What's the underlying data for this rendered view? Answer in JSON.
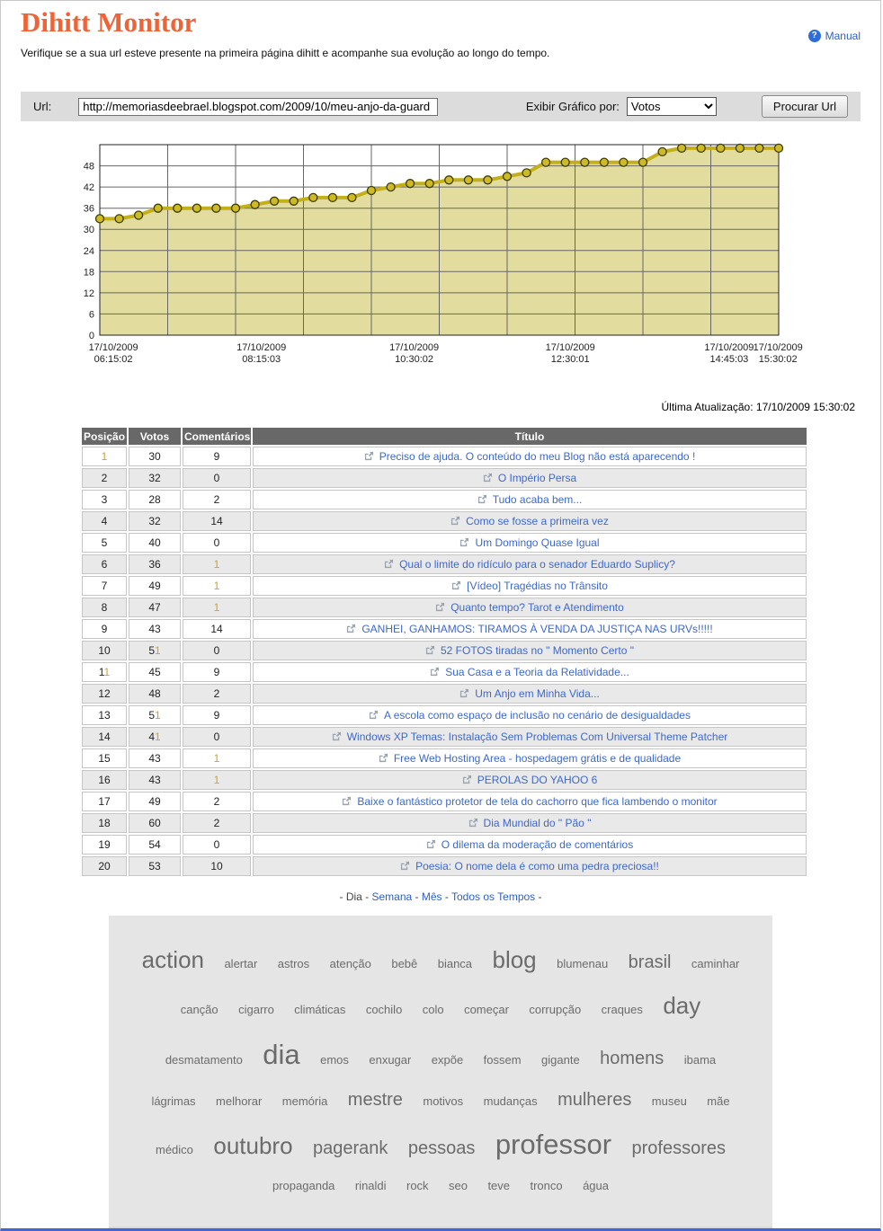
{
  "header": {
    "title": "Dihitt Monitor",
    "subtitle": "Verifique se a sua url esteve presente na primeira página dihitt e acompanhe sua evolução ao longo do tempo.",
    "manual_link": "Manual",
    "help_icon": "question-mark-circle",
    "title_color": "#EF6437"
  },
  "search_bar": {
    "url_label": "Url:",
    "url_value": "http://memoriasdeebrael.blogspot.com/2009/10/meu-anjo-da-guard",
    "graph_by_label": "Exibir Gráfico por:",
    "graph_by_value": "Votos",
    "search_button": "Procurar Url"
  },
  "chart_data": {
    "type": "area",
    "title": "",
    "xlabel": "",
    "ylabel": "",
    "values": [
      33,
      33,
      34,
      36,
      36,
      36,
      36,
      36,
      37,
      38,
      38,
      39,
      39,
      39,
      41,
      42,
      43,
      43,
      44,
      44,
      44,
      45,
      46,
      49,
      49,
      49,
      49,
      49,
      49,
      52,
      53,
      53,
      53,
      53,
      53,
      53
    ],
    "y_ticks": [
      0,
      6,
      12,
      18,
      24,
      30,
      36,
      42,
      48
    ],
    "ylim": [
      0,
      54
    ],
    "grid": true,
    "legend": false,
    "x_tick_labels": [
      {
        "date": "17/10/2009",
        "time": "06:15:02",
        "pos": 0.02
      },
      {
        "date": "17/10/2009",
        "time": "08:15:03",
        "pos": 0.238
      },
      {
        "date": "17/10/2009",
        "time": "10:30:02",
        "pos": 0.463
      },
      {
        "date": "17/10/2009",
        "time": "12:30:01",
        "pos": 0.693
      },
      {
        "date": "17/10/2009",
        "time": "14:45:03",
        "pos": 0.927
      },
      {
        "date": "17/10/2009",
        "time": "15:30:02",
        "pos": 0.999
      }
    ],
    "colors": {
      "area_fill": "#E2DD9E",
      "line": "#C3AF17",
      "marker_fill": "#CDBA26",
      "marker_stroke": "#3C3C00",
      "grid": "#666666",
      "border": "#222222"
    }
  },
  "last_update": "Última Atualização: 17/10/2009 15:30:02",
  "table": {
    "columns": [
      "Posição",
      "Votos",
      "Comentários",
      "Título"
    ],
    "highlight_color": "#C9A03C",
    "rows": [
      {
        "pos": "",
        "pos_hot": "1",
        "votes": "30",
        "votes_hot": "",
        "comments": "9",
        "comments_hot": "",
        "title": "Preciso de ajuda. O conteúdo do meu Blog não está aparecendo !"
      },
      {
        "pos": "2",
        "pos_hot": "",
        "votes": "32",
        "votes_hot": "",
        "comments": "0",
        "comments_hot": "",
        "title": "O Império Persa"
      },
      {
        "pos": "3",
        "pos_hot": "",
        "votes": "28",
        "votes_hot": "",
        "comments": "2",
        "comments_hot": "",
        "title": "Tudo acaba bem..."
      },
      {
        "pos": "4",
        "pos_hot": "",
        "votes": "32",
        "votes_hot": "",
        "comments": "14",
        "comments_hot": "",
        "title": "Como se fosse a primeira vez"
      },
      {
        "pos": "5",
        "pos_hot": "",
        "votes": "40",
        "votes_hot": "",
        "comments": "0",
        "comments_hot": "",
        "title": "Um Domingo Quase Igual"
      },
      {
        "pos": "6",
        "pos_hot": "",
        "votes": "36",
        "votes_hot": "",
        "comments": "",
        "comments_hot": "1",
        "title": "Qual o limite do ridículo para o senador Eduardo Suplicy?"
      },
      {
        "pos": "7",
        "pos_hot": "",
        "votes": "49",
        "votes_hot": "",
        "comments": "",
        "comments_hot": "1",
        "title": "[Vídeo] Tragédias no Trânsito"
      },
      {
        "pos": "8",
        "pos_hot": "",
        "votes": "47",
        "votes_hot": "",
        "comments": "",
        "comments_hot": "1",
        "title": "Quanto tempo? Tarot e Atendimento"
      },
      {
        "pos": "9",
        "pos_hot": "",
        "votes": "43",
        "votes_hot": "",
        "comments": "14",
        "comments_hot": "",
        "title": "GANHEI, GANHAMOS: TIRAMOS À VENDA DA JUSTIÇA NAS URVs!!!!!"
      },
      {
        "pos": "10",
        "pos_hot": "",
        "votes": "5",
        "votes_hot": "1",
        "comments": "0",
        "comments_hot": "",
        "title": "52 FOTOS tiradas no \" Momento Certo \""
      },
      {
        "pos": "1",
        "pos_hot": "1",
        "votes": "45",
        "votes_hot": "",
        "comments": "9",
        "comments_hot": "",
        "title": "Sua Casa e a Teoria da Relatividade..."
      },
      {
        "pos": "12",
        "pos_hot": "",
        "votes": "48",
        "votes_hot": "",
        "comments": "2",
        "comments_hot": "",
        "title": "Um Anjo em Minha Vida..."
      },
      {
        "pos": "13",
        "pos_hot": "",
        "votes": "5",
        "votes_hot": "1",
        "comments": "9",
        "comments_hot": "",
        "title": "A escola como espaço de inclusão no cenário de desigualdades"
      },
      {
        "pos": "14",
        "pos_hot": "",
        "votes": "4",
        "votes_hot": "1",
        "comments": "0",
        "comments_hot": "",
        "title": "Windows XP Temas: Instalação Sem Problemas Com Universal Theme Patcher"
      },
      {
        "pos": "15",
        "pos_hot": "",
        "votes": "43",
        "votes_hot": "",
        "comments": "",
        "comments_hot": "1",
        "title": "Free Web Hosting Area - hospedagem grátis e de qualidade"
      },
      {
        "pos": "16",
        "pos_hot": "",
        "votes": "43",
        "votes_hot": "",
        "comments": "",
        "comments_hot": "1",
        "title": "PEROLAS DO YAHOO 6"
      },
      {
        "pos": "17",
        "pos_hot": "",
        "votes": "49",
        "votes_hot": "",
        "comments": "2",
        "comments_hot": "",
        "title": "Baixe o fantástico protetor de tela do cachorro que fica lambendo o monitor"
      },
      {
        "pos": "18",
        "pos_hot": "",
        "votes": "60",
        "votes_hot": "",
        "comments": "2",
        "comments_hot": "",
        "title": "Dia Mundial do \" Pão \""
      },
      {
        "pos": "19",
        "pos_hot": "",
        "votes": "54",
        "votes_hot": "",
        "comments": "0",
        "comments_hot": "",
        "title": "O dilema da moderação de comentários"
      },
      {
        "pos": "20",
        "pos_hot": "",
        "votes": "53",
        "votes_hot": "",
        "comments": "10",
        "comments_hot": "",
        "title": "Poesia: O nome dela é como uma pedra preciosa!!"
      }
    ]
  },
  "period_links": {
    "items": [
      {
        "label": "Dia",
        "active": true
      },
      {
        "label": "Semana",
        "active": false
      },
      {
        "label": "Mês",
        "active": false
      },
      {
        "label": "Todos os Tempos",
        "active": false
      }
    ]
  },
  "tag_cloud": {
    "words": [
      {
        "text": "action",
        "size": 4
      },
      {
        "text": "alertar",
        "size": 1
      },
      {
        "text": "astros",
        "size": 1
      },
      {
        "text": "atenção",
        "size": 1
      },
      {
        "text": "bebê",
        "size": 1
      },
      {
        "text": "bianca",
        "size": 1
      },
      {
        "text": "blog",
        "size": 4
      },
      {
        "text": "blumenau",
        "size": 1
      },
      {
        "text": "brasil",
        "size": 3
      },
      {
        "text": "caminhar",
        "size": 1
      },
      {
        "text": "canção",
        "size": 1
      },
      {
        "text": "cigarro",
        "size": 1
      },
      {
        "text": "climáticas",
        "size": 1
      },
      {
        "text": "cochilo",
        "size": 1
      },
      {
        "text": "colo",
        "size": 1
      },
      {
        "text": "começar",
        "size": 1
      },
      {
        "text": "corrupção",
        "size": 1
      },
      {
        "text": "craques",
        "size": 1
      },
      {
        "text": "day",
        "size": 4
      },
      {
        "text": "desmatamento",
        "size": 1
      },
      {
        "text": "dia",
        "size": 5
      },
      {
        "text": "emos",
        "size": 1
      },
      {
        "text": "enxugar",
        "size": 1
      },
      {
        "text": "expõe",
        "size": 1
      },
      {
        "text": "fossem",
        "size": 1
      },
      {
        "text": "gigante",
        "size": 1
      },
      {
        "text": "homens",
        "size": 3
      },
      {
        "text": "ibama",
        "size": 1
      },
      {
        "text": "lágrimas",
        "size": 1
      },
      {
        "text": "melhorar",
        "size": 1
      },
      {
        "text": "memória",
        "size": 1
      },
      {
        "text": "mestre",
        "size": 3
      },
      {
        "text": "motivos",
        "size": 1
      },
      {
        "text": "mudanças",
        "size": 1
      },
      {
        "text": "mulheres",
        "size": 3
      },
      {
        "text": "museu",
        "size": 1
      },
      {
        "text": "mãe",
        "size": 1
      },
      {
        "text": "médico",
        "size": 1
      },
      {
        "text": "outubro",
        "size": 4
      },
      {
        "text": "pagerank",
        "size": 3
      },
      {
        "text": "pessoas",
        "size": 3
      },
      {
        "text": "professor",
        "size": 5
      },
      {
        "text": "professores",
        "size": 3
      },
      {
        "text": "propaganda",
        "size": 1
      },
      {
        "text": "rinaldi",
        "size": 1
      },
      {
        "text": "rock",
        "size": 1
      },
      {
        "text": "seo",
        "size": 1
      },
      {
        "text": "teve",
        "size": 1
      },
      {
        "text": "tronco",
        "size": 1
      },
      {
        "text": "água",
        "size": 1
      }
    ]
  }
}
